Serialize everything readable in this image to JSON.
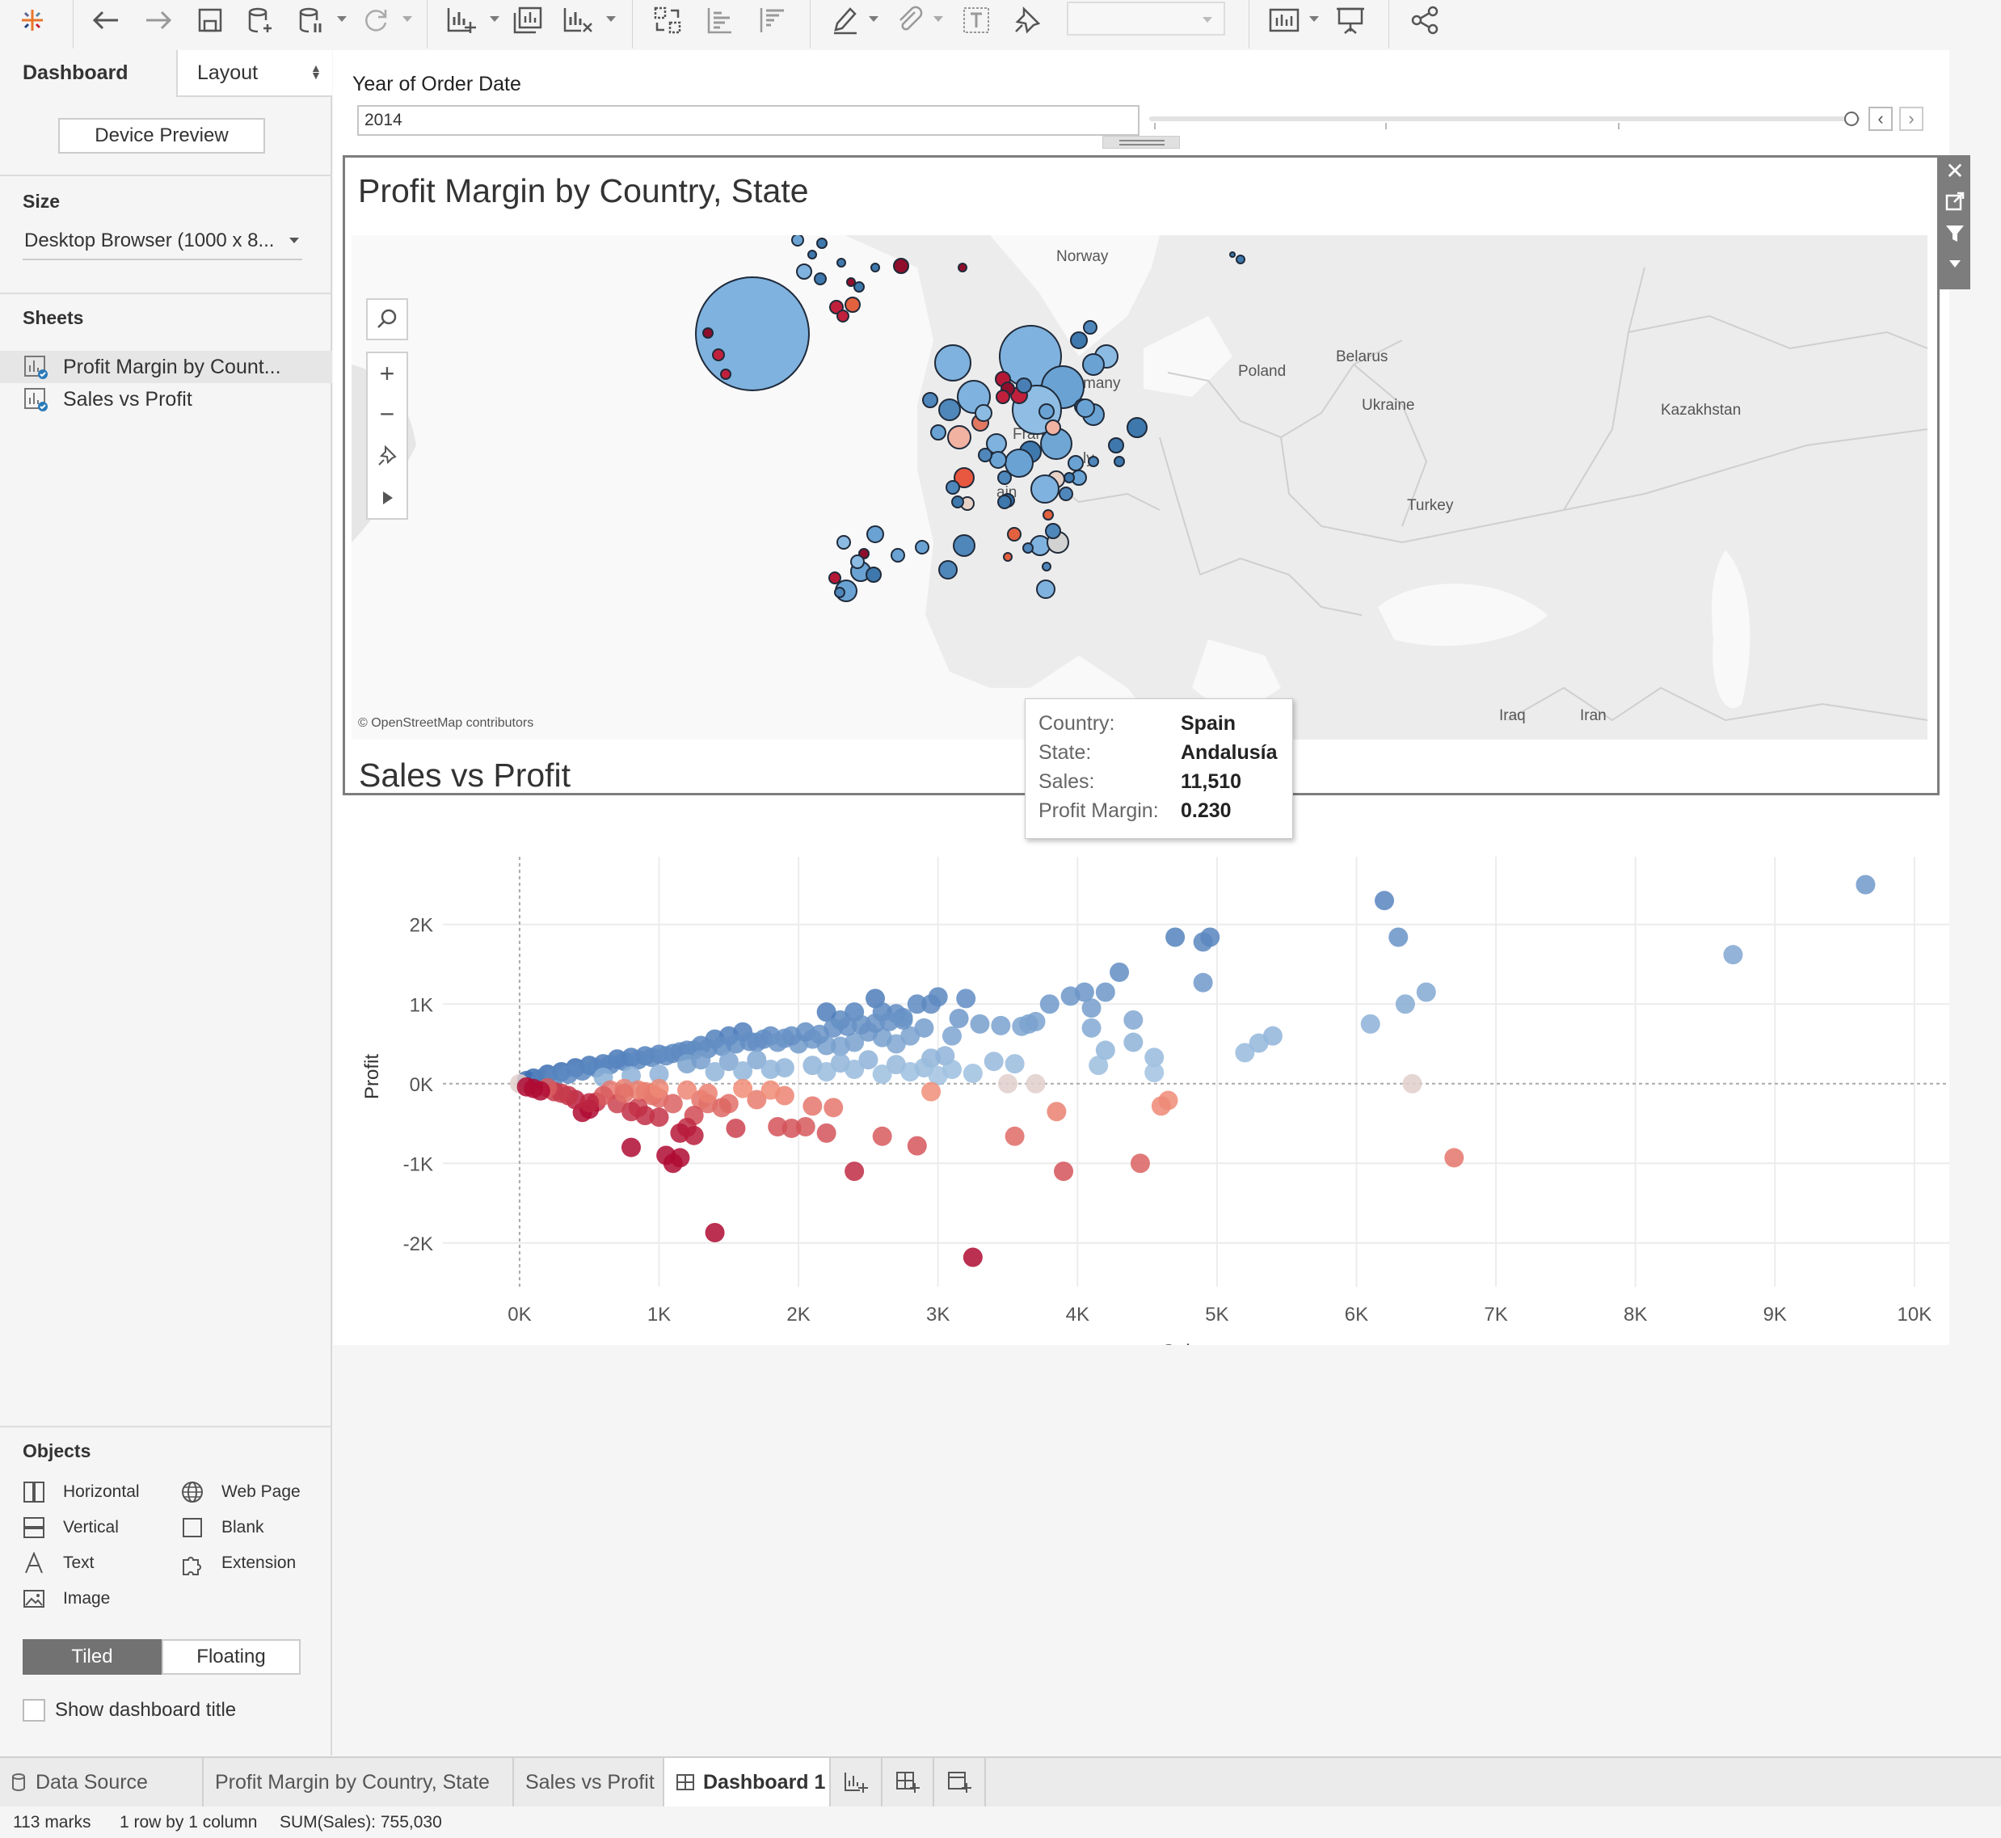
{
  "toolbar": {
    "icons": [
      "tableau-logo-icon",
      "undo-icon",
      "redo-icon",
      "save-icon",
      "new-data-source-icon",
      "pause-updates-icon",
      "refresh-icon",
      "new-worksheet-icon",
      "duplicate-sheet-icon",
      "clear-sheet-icon",
      "swap-icon",
      "sort-ascending-icon",
      "sort-descending-icon",
      "highlight-icon",
      "group-icon",
      "labels-icon",
      "fix-axes-icon",
      "fit-dropdown",
      "show-cards-icon",
      "presentation-mode-icon",
      "share-icon"
    ]
  },
  "left_panel": {
    "tab_dashboard": "Dashboard",
    "tab_layout": "Layout",
    "device_preview": "Device Preview",
    "size_heading": "Size",
    "size_value": "Desktop Browser (1000 x 8...",
    "sheets_heading": "Sheets",
    "sheets": [
      {
        "label": "Profit Margin by Count..."
      },
      {
        "label": "Sales vs Profit"
      }
    ],
    "objects_heading": "Objects",
    "objects": [
      {
        "label": "Horizontal",
        "icon": "horizontal-icon"
      },
      {
        "label": "Web Page",
        "icon": "web-page-icon"
      },
      {
        "label": "Vertical",
        "icon": "vertical-icon"
      },
      {
        "label": "Blank",
        "icon": "blank-icon"
      },
      {
        "label": "Text",
        "icon": "text-icon"
      },
      {
        "label": "Extension",
        "icon": "extension-icon"
      },
      {
        "label": "Image",
        "icon": "image-icon"
      }
    ],
    "tiled": "Tiled",
    "floating": "Floating",
    "show_title": "Show dashboard title"
  },
  "filter": {
    "title": "Year of Order Date",
    "value": "2014"
  },
  "map": {
    "title": "Profit Margin by Country, State",
    "attribution": "© OpenStreetMap contributors",
    "labels": [
      "Norway",
      "Poland",
      "Belarus",
      "Ukraine",
      "Kazakhstan",
      "France",
      "Turkey",
      "Iraq",
      "Iran",
      "many",
      "ly",
      "ain"
    ]
  },
  "tooltip": {
    "rows": [
      {
        "key": "Country:",
        "value": "Spain"
      },
      {
        "key": "State:",
        "value": "Andalusía"
      },
      {
        "key": "Sales:",
        "value": "11,510"
      },
      {
        "key": "Profit Margin:",
        "value": "0.230"
      }
    ]
  },
  "scatter_title": "Sales vs Profit",
  "chart_data": {
    "type": "scatter",
    "title": "Sales vs Profit",
    "xlabel": "Sales",
    "ylabel": "Profit",
    "xlim": [
      -550,
      10250
    ],
    "ylim": [
      -2550,
      2850
    ],
    "x_ticks": [
      {
        "v": 0,
        "label": "0K"
      },
      {
        "v": 1000,
        "label": "1K"
      },
      {
        "v": 2000,
        "label": "2K"
      },
      {
        "v": 3000,
        "label": "3K"
      },
      {
        "v": 4000,
        "label": "4K"
      },
      {
        "v": 5000,
        "label": "5K"
      },
      {
        "v": 6000,
        "label": "6K"
      },
      {
        "v": 7000,
        "label": "7K"
      },
      {
        "v": 8000,
        "label": "8K"
      },
      {
        "v": 9000,
        "label": "9K"
      },
      {
        "v": 10000,
        "label": "10K"
      }
    ],
    "y_ticks": [
      {
        "v": 2000,
        "label": "2K"
      },
      {
        "v": 1000,
        "label": "1K"
      },
      {
        "v": 0,
        "label": "0K"
      },
      {
        "v": -1000,
        "label": "-1K"
      },
      {
        "v": -2000,
        "label": "-2K"
      }
    ],
    "color_encoding": "profit margin (red = negative, blue = positive)",
    "points": [
      [
        9650,
        2500
      ],
      [
        8700,
        1620
      ],
      [
        6200,
        2300
      ],
      [
        6300,
        1840
      ],
      [
        6500,
        1150
      ],
      [
        6350,
        1000
      ],
      [
        6100,
        750
      ],
      [
        6400,
        0
      ],
      [
        6700,
        -930
      ],
      [
        4700,
        1840
      ],
      [
        4950,
        1840
      ],
      [
        4900,
        1780
      ],
      [
        4900,
        1270
      ],
      [
        4300,
        1400
      ],
      [
        4200,
        1150
      ],
      [
        4050,
        1150
      ],
      [
        3950,
        1100
      ],
      [
        3800,
        1000
      ],
      [
        4400,
        800
      ],
      [
        4100,
        950
      ],
      [
        4100,
        700
      ],
      [
        4200,
        420
      ],
      [
        4150,
        230
      ],
      [
        4400,
        520
      ],
      [
        4550,
        330
      ],
      [
        4550,
        140
      ],
      [
        5400,
        600
      ],
      [
        5300,
        510
      ],
      [
        5200,
        390
      ],
      [
        3200,
        1070
      ],
      [
        3000,
        1090
      ],
      [
        2950,
        1000
      ],
      [
        2850,
        1000
      ],
      [
        2550,
        1070
      ],
      [
        2750,
        830
      ],
      [
        2700,
        880
      ],
      [
        2600,
        900
      ],
      [
        2400,
        900
      ],
      [
        2300,
        800
      ],
      [
        2200,
        900
      ],
      [
        3150,
        820
      ],
      [
        3300,
        750
      ],
      [
        3450,
        730
      ],
      [
        3600,
        720
      ],
      [
        3650,
        750
      ],
      [
        3700,
        780
      ],
      [
        3550,
        250
      ],
      [
        3400,
        280
      ],
      [
        2950,
        320
      ],
      [
        3050,
        350
      ],
      [
        3250,
        130
      ],
      [
        3100,
        600
      ],
      [
        2900,
        700
      ],
      [
        2800,
        600
      ],
      [
        2700,
        500
      ],
      [
        2600,
        580
      ],
      [
        2500,
        650
      ],
      [
        2400,
        520
      ],
      [
        2300,
        470
      ],
      [
        2200,
        480
      ],
      [
        2100,
        560
      ],
      [
        2000,
        500
      ],
      [
        1900,
        570
      ],
      [
        1800,
        600
      ],
      [
        1700,
        520
      ],
      [
        1600,
        650
      ],
      [
        1500,
        600
      ],
      [
        1400,
        560
      ],
      [
        1300,
        480
      ],
      [
        1200,
        420
      ],
      [
        1100,
        380
      ],
      [
        1000,
        370
      ],
      [
        900,
        350
      ],
      [
        800,
        330
      ],
      [
        700,
        310
      ],
      [
        600,
        250
      ],
      [
        500,
        230
      ],
      [
        400,
        200
      ],
      [
        300,
        150
      ],
      [
        200,
        120
      ],
      [
        100,
        70
      ],
      [
        50,
        40
      ],
      [
        0,
        0
      ],
      [
        150,
        60
      ],
      [
        250,
        90
      ],
      [
        350,
        120
      ],
      [
        450,
        160
      ],
      [
        550,
        200
      ],
      [
        650,
        240
      ],
      [
        750,
        280
      ],
      [
        850,
        300
      ],
      [
        950,
        330
      ],
      [
        1050,
        350
      ],
      [
        1150,
        400
      ],
      [
        1250,
        420
      ],
      [
        1350,
        440
      ],
      [
        1450,
        470
      ],
      [
        1550,
        500
      ],
      [
        1650,
        530
      ],
      [
        1750,
        560
      ],
      [
        1850,
        520
      ],
      [
        1950,
        600
      ],
      [
        2050,
        650
      ],
      [
        2150,
        620
      ],
      [
        2250,
        700
      ],
      [
        2350,
        720
      ],
      [
        2450,
        740
      ],
      [
        2550,
        760
      ],
      [
        2650,
        780
      ],
      [
        2750,
        800
      ],
      [
        1200,
        250
      ],
      [
        1300,
        300
      ],
      [
        1500,
        280
      ],
      [
        1700,
        300
      ],
      [
        1900,
        200
      ],
      [
        2100,
        230
      ],
      [
        2300,
        260
      ],
      [
        2500,
        300
      ],
      [
        2700,
        240
      ],
      [
        2900,
        200
      ],
      [
        3100,
        180
      ],
      [
        1800,
        180
      ],
      [
        1600,
        160
      ],
      [
        1400,
        150
      ],
      [
        1000,
        120
      ],
      [
        800,
        100
      ],
      [
        600,
        80
      ],
      [
        2200,
        150
      ],
      [
        2400,
        180
      ],
      [
        2600,
        120
      ],
      [
        2800,
        150
      ],
      [
        3000,
        100
      ],
      [
        3500,
        0
      ],
      [
        3700,
        0
      ],
      [
        4650,
        -210
      ],
      [
        4600,
        -280
      ],
      [
        3900,
        -1100
      ],
      [
        4450,
        -1000
      ],
      [
        3550,
        -660
      ],
      [
        3850,
        -350
      ],
      [
        3250,
        -2180
      ],
      [
        2850,
        -780
      ],
      [
        2950,
        -100
      ],
      [
        2600,
        -660
      ],
      [
        2400,
        -1100
      ],
      [
        2250,
        -300
      ],
      [
        2100,
        -280
      ],
      [
        2050,
        -540
      ],
      [
        1950,
        -560
      ],
      [
        1850,
        -540
      ],
      [
        2200,
        -620
      ],
      [
        1700,
        -200
      ],
      [
        1900,
        -150
      ],
      [
        1800,
        -80
      ],
      [
        1500,
        -250
      ],
      [
        1400,
        -1870
      ],
      [
        1550,
        -560
      ],
      [
        1450,
        -300
      ],
      [
        1350,
        -250
      ],
      [
        1300,
        -200
      ],
      [
        1250,
        -400
      ],
      [
        1200,
        -550
      ],
      [
        1150,
        -620
      ],
      [
        1250,
        -650
      ],
      [
        1100,
        -1000
      ],
      [
        1150,
        -930
      ],
      [
        1050,
        -900
      ],
      [
        1100,
        -250
      ],
      [
        1000,
        -180
      ],
      [
        950,
        -150
      ],
      [
        900,
        -100
      ],
      [
        850,
        -300
      ],
      [
        800,
        -350
      ],
      [
        900,
        -400
      ],
      [
        1000,
        -420
      ],
      [
        950,
        -120
      ],
      [
        850,
        -80
      ],
      [
        750,
        -60
      ],
      [
        650,
        -80
      ],
      [
        550,
        -230
      ],
      [
        450,
        -360
      ],
      [
        500,
        -320
      ],
      [
        400,
        -200
      ],
      [
        350,
        -150
      ],
      [
        300,
        -120
      ],
      [
        250,
        -100
      ],
      [
        200,
        -50
      ],
      [
        150,
        -90
      ],
      [
        100,
        -60
      ],
      [
        50,
        -40
      ],
      [
        700,
        -250
      ],
      [
        600,
        -150
      ],
      [
        750,
        -120
      ],
      [
        1000,
        -60
      ],
      [
        1200,
        -80
      ],
      [
        1350,
        -120
      ],
      [
        1600,
        -60
      ],
      [
        800,
        -800
      ],
      [
        500,
        -240
      ]
    ]
  },
  "tabs": {
    "data_source": "Data Source",
    "sheet1": "Profit Margin by Country, State",
    "sheet2": "Sales vs Profit",
    "dashboard": "Dashboard 1"
  },
  "status": {
    "marks": "113 marks",
    "grid": "1 row by 1 column",
    "sum": "SUM(Sales): 755,030"
  }
}
